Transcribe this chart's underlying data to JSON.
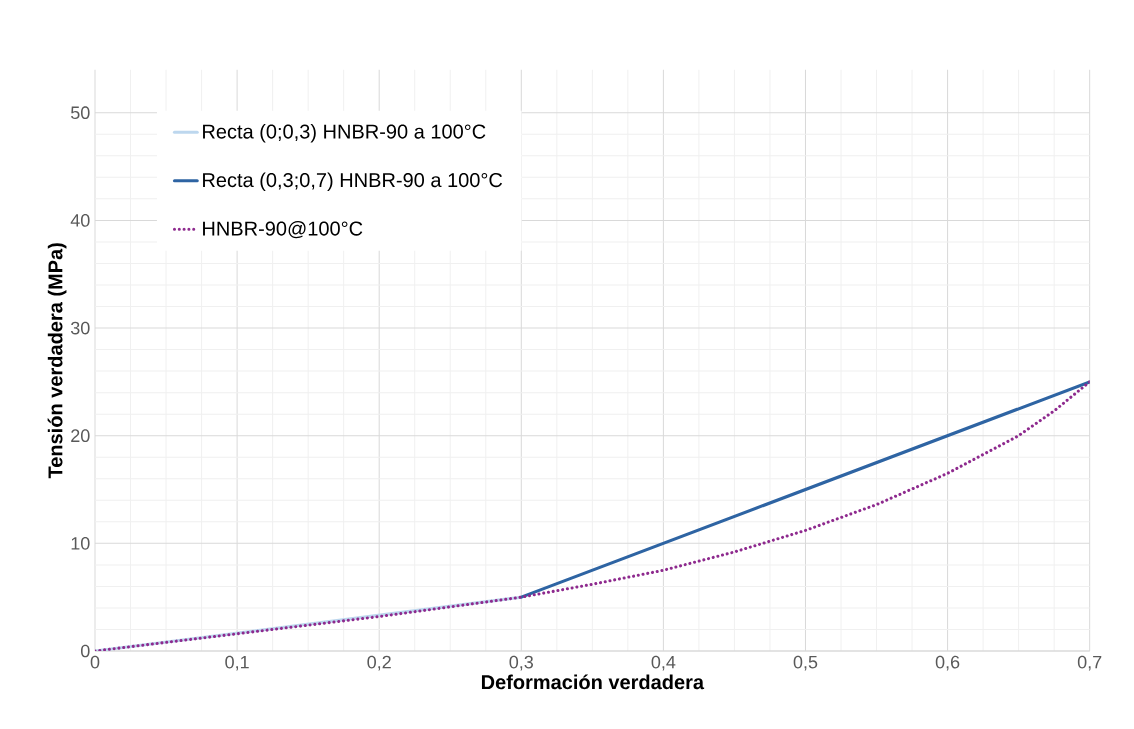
{
  "chart_data": {
    "type": "line",
    "xlabel": "Deformación verdadera",
    "ylabel": "Tensión verdadera (MPa)",
    "xlim": [
      0,
      0.7
    ],
    "ylim": [
      0,
      54
    ],
    "xticks": [
      0,
      {
        "value": 0.1,
        "label": "0,1"
      },
      {
        "value": 0.2,
        "label": "0,2"
      },
      {
        "value": 0.3,
        "label": "0,3"
      },
      {
        "value": 0.4,
        "label": "0,4"
      },
      {
        "value": 0.5,
        "label": "0,5"
      },
      {
        "value": 0.6,
        "label": "0,6"
      },
      {
        "value": 0.7,
        "label": "0,7"
      }
    ],
    "yticks": [
      0,
      10,
      20,
      30,
      40,
      50
    ],
    "grid": true,
    "legend": "top left",
    "marker": "none",
    "series": [
      {
        "name": "Recta (0;0,3) HNBR-90 a 100°C",
        "color": "#bdd7ee",
        "x": [
          0,
          0.3
        ],
        "values": [
          0,
          5
        ],
        "line_style": "solid"
      },
      {
        "name": "Recta (0,3;0,7) HNBR-90 a 100°C",
        "color": "#2e64a3",
        "x": [
          0.3,
          0.7
        ],
        "values": [
          5,
          25
        ],
        "line_style": "solid"
      },
      {
        "name": "HNBR-90@100°C",
        "color": "#8e2a8e",
        "x": [
          0,
          0.1,
          0.2,
          0.3,
          0.35,
          0.4,
          0.45,
          0.5,
          0.55,
          0.6,
          0.65,
          0.675,
          0.7
        ],
        "values": [
          0,
          1.6,
          3.2,
          5,
          6.2,
          7.5,
          9.2,
          11.2,
          13.6,
          16.5,
          20,
          22.3,
          25
        ],
        "line_style": "dotted"
      }
    ]
  }
}
